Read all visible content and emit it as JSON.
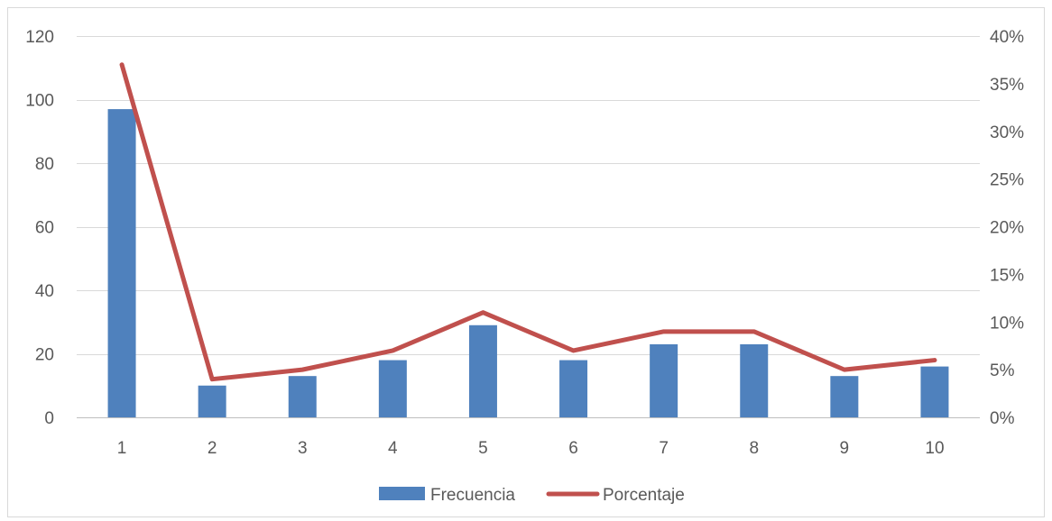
{
  "chart_data": {
    "type": "bar",
    "categories": [
      "1",
      "2",
      "3",
      "4",
      "5",
      "6",
      "7",
      "8",
      "9",
      "10"
    ],
    "series": [
      {
        "name": "Frecuencia",
        "type": "bar",
        "axis": "left",
        "color": "#4f81bd",
        "values": [
          97,
          10,
          13,
          18,
          29,
          18,
          23,
          23,
          13,
          16
        ]
      },
      {
        "name": "Porcentaje",
        "type": "line",
        "axis": "right",
        "color": "#c0504d",
        "values": [
          0.37,
          0.04,
          0.05,
          0.07,
          0.11,
          0.07,
          0.09,
          0.09,
          0.05,
          0.06
        ]
      }
    ],
    "y_left": {
      "ylim": [
        0,
        120
      ],
      "ticks": [
        0,
        20,
        40,
        60,
        80,
        100,
        120
      ],
      "tick_labels": [
        "0",
        "20",
        "40",
        "60",
        "80",
        "100",
        "120"
      ]
    },
    "y_right": {
      "ylim": [
        0,
        0.4
      ],
      "ticks": [
        0,
        0.05,
        0.1,
        0.15,
        0.2,
        0.25,
        0.3,
        0.35,
        0.4
      ],
      "tick_labels": [
        "0%",
        "5%",
        "10%",
        "15%",
        "20%",
        "25%",
        "30%",
        "35%",
        "40%"
      ]
    },
    "title": "",
    "xlabel": "",
    "ylabel": "",
    "grid": true,
    "legend_position": "bottom",
    "grid_color": "#d9d9d9",
    "axis_color": "#bfbfbf",
    "text_color": "#595959"
  }
}
